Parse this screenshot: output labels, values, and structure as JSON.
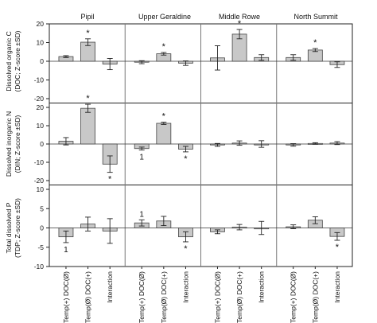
{
  "chart_data": {
    "type": "bar",
    "sites": [
      "Pipil",
      "Upper Geraldine",
      "Middle Rowe",
      "North Summit"
    ],
    "categories": [
      "Temp(+) DOC(Ø)",
      "Temp(Ø) DOC(+)",
      "Interaction"
    ],
    "colors": {
      "bar": "#c8c8c8",
      "edge": "#444444",
      "axis": "#222222",
      "separator": "#777777"
    },
    "grid": false,
    "panels": [
      {
        "ylabel_lines": [
          "Dissolved organic C",
          "(DOC; Z-score ±SD)"
        ],
        "ylim": [
          -20,
          20
        ],
        "ticks": [
          -20,
          -10,
          0,
          10,
          20
        ],
        "values": [
          [
            2.5,
            10.2,
            -1.5
          ],
          [
            -0.5,
            4.0,
            -1.0
          ],
          [
            1.8,
            14.5,
            2.0
          ],
          [
            2.0,
            6.0,
            -1.8
          ]
        ],
        "errors": [
          [
            0.5,
            1.8,
            3.0
          ],
          [
            0.8,
            0.7,
            1.2
          ],
          [
            6.5,
            2.5,
            1.5
          ],
          [
            1.5,
            0.8,
            1.5
          ]
        ],
        "stars": [
          [
            false,
            true,
            false
          ],
          [
            false,
            true,
            false
          ],
          [
            false,
            true,
            false
          ],
          [
            false,
            true,
            false
          ]
        ],
        "labels": [
          [
            "",
            "",
            ""
          ],
          [
            "",
            "",
            ""
          ],
          [
            "",
            "",
            ""
          ],
          [
            "",
            "",
            ""
          ]
        ]
      },
      {
        "ylabel_lines": [
          "Dissolved inorganic N",
          "(DIN; Z-score ±SD)"
        ],
        "ylim": [
          -20,
          20
        ],
        "ticks": [
          -20,
          -10,
          0,
          10,
          20
        ],
        "values": [
          [
            1.5,
            19.5,
            -11.0
          ],
          [
            -2.5,
            11.3,
            -2.8
          ],
          [
            -0.5,
            0.5,
            0.0
          ],
          [
            -0.5,
            0.3,
            0.5
          ]
        ],
        "errors": [
          [
            2.0,
            2.2,
            4.5
          ],
          [
            0.8,
            0.6,
            1.5
          ],
          [
            0.8,
            1.2,
            1.8
          ],
          [
            0.7,
            0.4,
            0.8
          ]
        ],
        "stars": [
          [
            false,
            true,
            true
          ],
          [
            false,
            true,
            true
          ],
          [
            false,
            false,
            false
          ],
          [
            false,
            false,
            false
          ]
        ],
        "labels": [
          [
            "",
            "",
            ""
          ],
          [
            "1",
            "",
            ""
          ],
          [
            "",
            "",
            ""
          ],
          [
            "",
            "",
            ""
          ]
        ]
      },
      {
        "ylabel_lines": [
          "Total dissolved P",
          "(TDP; Z-score ±SD)"
        ],
        "ylim": [
          -10,
          10
        ],
        "ticks": [
          -10,
          -5,
          0,
          5,
          10
        ],
        "values": [
          [
            -2.3,
            1.0,
            -0.8
          ],
          [
            1.3,
            1.8,
            -2.3
          ],
          [
            -1.0,
            0.2,
            0.0
          ],
          [
            0.3,
            2.0,
            -2.2
          ]
        ],
        "errors": [
          [
            1.5,
            1.8,
            3.2
          ],
          [
            0.8,
            1.2,
            1.3
          ],
          [
            0.5,
            0.7,
            1.7
          ],
          [
            0.5,
            0.9,
            1.0
          ]
        ],
        "stars": [
          [
            false,
            false,
            false
          ],
          [
            false,
            false,
            true
          ],
          [
            false,
            false,
            false
          ],
          [
            false,
            false,
            true
          ]
        ],
        "labels": [
          [
            "1",
            "",
            ""
          ],
          [
            "1",
            "",
            ""
          ],
          [
            "",
            "",
            ""
          ],
          [
            "",
            "",
            ""
          ]
        ]
      }
    ]
  }
}
